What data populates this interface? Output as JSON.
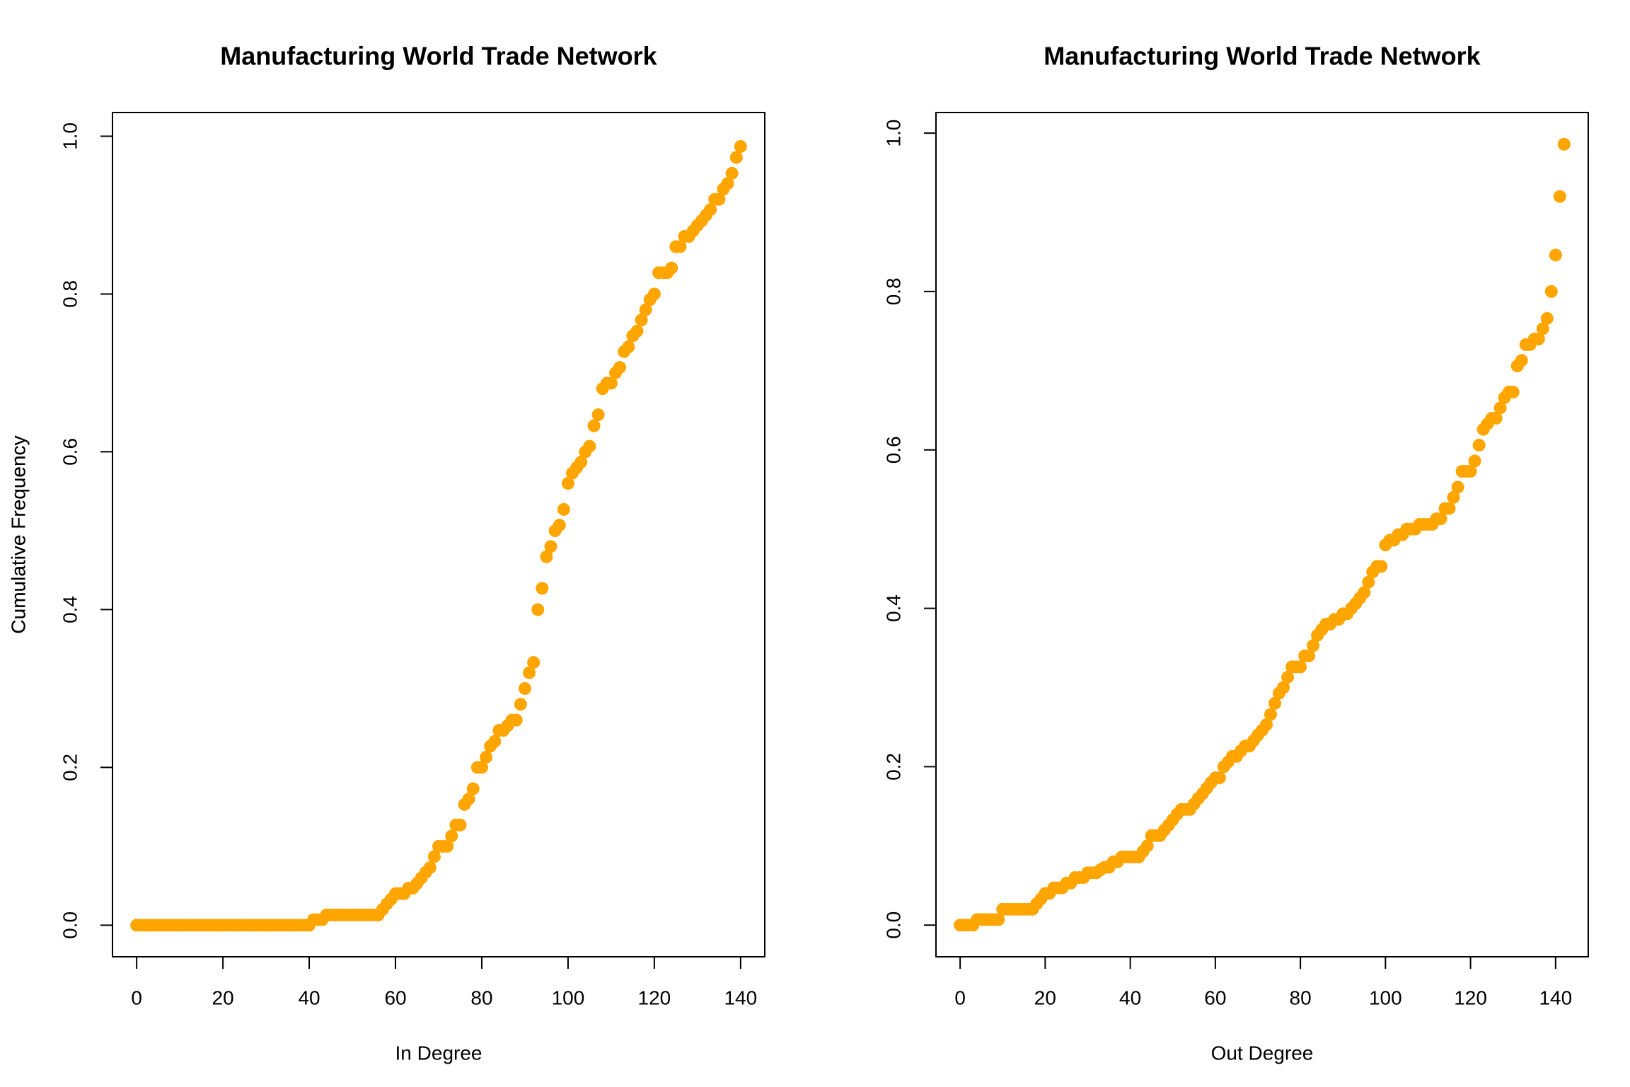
{
  "chart_data": [
    {
      "type": "scatter",
      "title": "Manufacturing World Trade Network",
      "x_label": "In Degree",
      "y_label": "Cumulative Frequency",
      "color": "#ffa500",
      "x": [
        0,
        1,
        2,
        3,
        4,
        5,
        6,
        7,
        8,
        9,
        10,
        11,
        12,
        13,
        14,
        15,
        16,
        17,
        18,
        19,
        20,
        21,
        22,
        23,
        24,
        25,
        26,
        27,
        28,
        29,
        30,
        31,
        32,
        33,
        34,
        35,
        36,
        37,
        38,
        39,
        40,
        41,
        42,
        43,
        44,
        45,
        46,
        47,
        48,
        49,
        50,
        51,
        52,
        53,
        54,
        55,
        56,
        57,
        58,
        59,
        60,
        61,
        62,
        63,
        64,
        65,
        66,
        67,
        68,
        69,
        70,
        71,
        72,
        73,
        74,
        75,
        76,
        77,
        78,
        79,
        80,
        81,
        82,
        83,
        84,
        85,
        86,
        87,
        88,
        89,
        90,
        91,
        92,
        93,
        94,
        95,
        96,
        97,
        98,
        99,
        100,
        101,
        102,
        103,
        104,
        105,
        106,
        107,
        108,
        109,
        110,
        111,
        112,
        113,
        114,
        115,
        116,
        117,
        118,
        119,
        120,
        121,
        122,
        123,
        124,
        125,
        126,
        127,
        128,
        129,
        130,
        131,
        132,
        133,
        134,
        135,
        136,
        137,
        138,
        139,
        140
      ],
      "values": [
        0,
        0,
        0,
        0,
        0,
        0,
        0,
        0,
        0,
        0,
        0,
        0,
        0,
        0,
        0,
        0,
        0,
        0,
        0,
        0,
        0,
        0,
        0,
        0,
        0,
        0,
        0,
        0,
        0,
        0,
        0,
        0,
        0,
        0,
        0,
        0,
        0,
        0,
        0,
        0,
        0,
        0.007,
        0.007,
        0.007,
        0.013,
        0.013,
        0.013,
        0.013,
        0.013,
        0.013,
        0.013,
        0.013,
        0.013,
        0.013,
        0.013,
        0.013,
        0.013,
        0.02,
        0.027,
        0.033,
        0.04,
        0.04,
        0.04,
        0.047,
        0.047,
        0.053,
        0.06,
        0.067,
        0.073,
        0.087,
        0.1,
        0.1,
        0.1,
        0.113,
        0.127,
        0.127,
        0.153,
        0.16,
        0.173,
        0.2,
        0.2,
        0.213,
        0.227,
        0.233,
        0.247,
        0.247,
        0.253,
        0.26,
        0.26,
        0.28,
        0.3,
        0.32,
        0.333,
        0.4,
        0.427,
        0.467,
        0.48,
        0.5,
        0.507,
        0.527,
        0.56,
        0.573,
        0.58,
        0.587,
        0.6,
        0.607,
        0.633,
        0.647,
        0.68,
        0.687,
        0.687,
        0.7,
        0.707,
        0.727,
        0.733,
        0.747,
        0.753,
        0.767,
        0.78,
        0.793,
        0.8,
        0.827,
        0.827,
        0.827,
        0.833,
        0.86,
        0.86,
        0.873,
        0.873,
        0.88,
        0.887,
        0.893,
        0.9,
        0.907,
        0.92,
        0.92,
        0.933,
        0.94,
        0.953,
        0.973,
        0.987
      ],
      "xlim": [
        -5.6,
        145.6
      ],
      "ylim": [
        -0.04,
        1.03
      ],
      "xticks": [
        0,
        20,
        40,
        60,
        80,
        100,
        120,
        140
      ],
      "yticks": [
        {
          "value": 0,
          "label": "0.0"
        },
        0.2,
        0.4,
        0.6,
        0.8,
        {
          "value": 1,
          "label": "1.0"
        }
      ]
    },
    {
      "type": "scatter",
      "title": "Manufacturing World Trade Network",
      "x_label": "Out Degree",
      "y_label": "Cumulative Frequency",
      "color": "#ffa500",
      "x": [
        0,
        1,
        2,
        3,
        4,
        5,
        6,
        7,
        8,
        9,
        10,
        11,
        12,
        13,
        14,
        15,
        16,
        17,
        18,
        19,
        20,
        21,
        22,
        23,
        24,
        25,
        26,
        27,
        28,
        29,
        30,
        31,
        32,
        33,
        34,
        35,
        36,
        37,
        38,
        39,
        40,
        41,
        42,
        43,
        44,
        45,
        46,
        47,
        48,
        49,
        50,
        51,
        52,
        53,
        54,
        55,
        56,
        57,
        58,
        59,
        60,
        61,
        62,
        63,
        64,
        65,
        66,
        67,
        68,
        69,
        70,
        71,
        72,
        73,
        74,
        75,
        76,
        77,
        78,
        79,
        80,
        81,
        82,
        83,
        84,
        85,
        86,
        87,
        88,
        89,
        90,
        91,
        92,
        93,
        94,
        95,
        96,
        97,
        98,
        99,
        100,
        101,
        102,
        103,
        104,
        105,
        106,
        107,
        108,
        109,
        110,
        111,
        112,
        113,
        114,
        115,
        116,
        117,
        118,
        119,
        120,
        121,
        122,
        123,
        124,
        125,
        126,
        127,
        128,
        129,
        130,
        131,
        132,
        133,
        134,
        135,
        136,
        137,
        138,
        139,
        140,
        141,
        142
      ],
      "values": [
        0,
        0,
        0,
        0,
        0.007,
        0.007,
        0.007,
        0.007,
        0.007,
        0.007,
        0.02,
        0.02,
        0.02,
        0.02,
        0.02,
        0.02,
        0.02,
        0.02,
        0.027,
        0.033,
        0.04,
        0.04,
        0.047,
        0.047,
        0.047,
        0.053,
        0.053,
        0.06,
        0.06,
        0.06,
        0.066,
        0.066,
        0.066,
        0.07,
        0.073,
        0.073,
        0.08,
        0.08,
        0.086,
        0.086,
        0.086,
        0.086,
        0.086,
        0.093,
        0.1,
        0.113,
        0.113,
        0.113,
        0.12,
        0.126,
        0.133,
        0.14,
        0.146,
        0.146,
        0.146,
        0.153,
        0.16,
        0.166,
        0.173,
        0.18,
        0.186,
        0.186,
        0.2,
        0.206,
        0.213,
        0.213,
        0.22,
        0.226,
        0.226,
        0.233,
        0.24,
        0.246,
        0.253,
        0.266,
        0.28,
        0.293,
        0.3,
        0.313,
        0.326,
        0.326,
        0.326,
        0.34,
        0.34,
        0.353,
        0.366,
        0.373,
        0.38,
        0.38,
        0.386,
        0.386,
        0.393,
        0.393,
        0.4,
        0.406,
        0.413,
        0.42,
        0.433,
        0.446,
        0.453,
        0.453,
        0.48,
        0.486,
        0.486,
        0.493,
        0.493,
        0.5,
        0.5,
        0.5,
        0.506,
        0.506,
        0.506,
        0.506,
        0.513,
        0.513,
        0.526,
        0.526,
        0.54,
        0.553,
        0.573,
        0.573,
        0.573,
        0.586,
        0.606,
        0.626,
        0.633,
        0.64,
        0.64,
        0.653,
        0.666,
        0.673,
        0.673,
        0.706,
        0.713,
        0.733,
        0.733,
        0.74,
        0.74,
        0.753,
        0.766,
        0.8,
        0.846,
        0.92,
        0.986
      ],
      "xlim": [
        -5.68,
        147.68
      ],
      "ylim": [
        -0.04,
        1.026
      ],
      "xticks": [
        0,
        20,
        40,
        60,
        80,
        100,
        120,
        140
      ],
      "yticks": [
        {
          "value": 0,
          "label": "0.0"
        },
        0.2,
        0.4,
        0.6,
        0.8,
        {
          "value": 1,
          "label": "1.0"
        }
      ]
    }
  ]
}
